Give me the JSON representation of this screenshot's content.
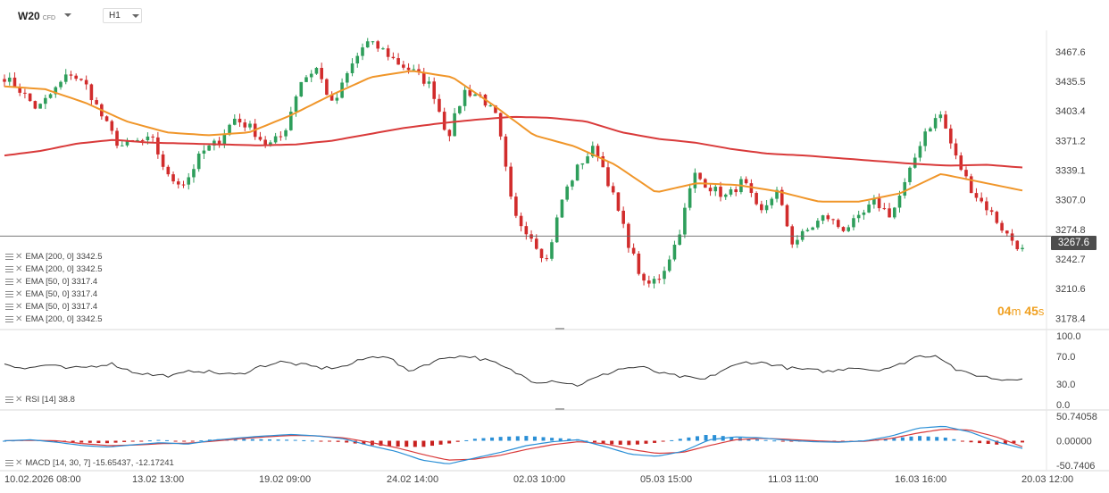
{
  "header": {
    "symbol": "W20",
    "symbol_type": "CFD",
    "timeframe": "H1"
  },
  "indicators_main": [
    {
      "label": "EMA",
      "params": "[200,  0]",
      "value": "3342.5",
      "color": "#d93a3a"
    },
    {
      "label": "EMA",
      "params": "[200,  0]",
      "value": "3342.5",
      "color": "#d93a3a"
    },
    {
      "label": "EMA",
      "params": "[50,  0]",
      "value": "3317.4",
      "color": "#f0962a"
    },
    {
      "label": "EMA",
      "params": "[50,  0]",
      "value": "3317.4",
      "color": "#f0962a"
    },
    {
      "label": "EMA",
      "params": "[50,  0]",
      "value": "3317.4",
      "color": "#f0962a"
    },
    {
      "label": "EMA",
      "params": "[200,  0]",
      "value": "3342.5",
      "color": "#d93a3a"
    }
  ],
  "rsi_legend": {
    "label": "RSI",
    "params": "[14]",
    "value": "38.8"
  },
  "macd_legend": {
    "label": "MACD",
    "params": "[14,  30,  7]",
    "value1": "-15.65437,",
    "value2": "-12.17241"
  },
  "timer": {
    "minutes": "04",
    "m": "m",
    "seconds": "45",
    "s": "s"
  },
  "current_price": "3267.6",
  "colors": {
    "up": "#2e9e5b",
    "down": "#d12c2c",
    "ema200": "#d93a3a",
    "ema50": "#f0962a",
    "rsi": "#333333",
    "macd_line": "#2a8fd6",
    "macd_signal": "#d93a3a",
    "hist_up": "#2a8fd6",
    "hist_down": "#c8201e"
  },
  "chart_data": [
    {
      "type": "candlestick",
      "ylim": [
        3170,
        3485
      ],
      "y_ticks": [
        "3467.6",
        "3435.5",
        "3403.4",
        "3371.2",
        "3339.1",
        "3307.0",
        "3274.8",
        "3242.7",
        "3210.6",
        "3178.4"
      ],
      "y_tick_values": [
        3467.6,
        3435.5,
        3403.4,
        3371.2,
        3339.1,
        3307.0,
        3274.8,
        3242.7,
        3210.6,
        3178.4
      ],
      "x_ticks": [
        "10.02.2026  08:00",
        "13.02  13:00",
        "19.02  09:00",
        "24.02  14:00",
        "02.03  10:00",
        "05.03  15:00",
        "11.03  11:00",
        "16.03  16:00",
        "20.03  12:00"
      ],
      "close_anchors": [
        3440,
        3425,
        3405,
        3425,
        3445,
        3430,
        3395,
        3365,
        3370,
        3372,
        3330,
        3325,
        3358,
        3370,
        3395,
        3385,
        3365,
        3378,
        3435,
        3450,
        3408,
        3448,
        3478,
        3470,
        3455,
        3445,
        3430,
        3375,
        3425,
        3420,
        3395,
        3290,
        3270,
        3240,
        3310,
        3345,
        3365,
        3315,
        3260,
        3212,
        3225,
        3265,
        3335,
        3320,
        3310,
        3328,
        3290,
        3318,
        3260,
        3275,
        3290,
        3275,
        3285,
        3305,
        3290,
        3330,
        3380,
        3400,
        3350,
        3315,
        3295,
        3270,
        3252
      ],
      "series": [
        {
          "name": "EMA [200, 0]",
          "anchors": [
            3355,
            3360,
            3368,
            3372,
            3369,
            3368,
            3367,
            3366,
            3367,
            3371,
            3378,
            3385,
            3390,
            3394,
            3397,
            3396,
            3392,
            3380,
            3373,
            3369,
            3362,
            3357,
            3355,
            3352,
            3349,
            3346,
            3344,
            3345,
            3342
          ]
        },
        {
          "name": "EMA [50, 0]",
          "anchors": [
            3430,
            3427,
            3412,
            3392,
            3380,
            3377,
            3380,
            3398,
            3420,
            3440,
            3447,
            3440,
            3410,
            3377,
            3365,
            3345,
            3315,
            3325,
            3323,
            3316,
            3305,
            3305,
            3314,
            3335,
            3326,
            3317
          ]
        }
      ]
    },
    {
      "type": "line",
      "name": "RSI [14]",
      "ylim": [
        0,
        100
      ],
      "y_ticks": [
        "100.0",
        "70.0",
        "30.0",
        "0.0"
      ],
      "y_tick_values": [
        100,
        70,
        30,
        0
      ],
      "anchors": [
        60,
        52,
        58,
        52,
        55,
        60,
        48,
        43,
        42,
        50,
        46,
        43,
        55,
        62,
        58,
        53,
        55,
        67,
        72,
        48,
        60,
        70,
        70,
        62,
        48,
        33,
        35,
        28,
        40,
        52,
        55,
        45,
        40,
        36,
        52,
        62,
        60,
        53,
        50,
        48,
        55,
        50,
        55,
        70,
        72,
        48,
        42,
        36,
        38.8
      ]
    },
    {
      "type": "bar_line",
      "name": "MACD [14, 30, 7]",
      "ylim": [
        -50.7406,
        50.74058
      ],
      "y_ticks": [
        "50.74058",
        "0.00000",
        "-50.7406"
      ],
      "y_tick_values": [
        50.74058,
        0,
        -50.7406
      ],
      "macd_anchors": [
        0,
        2,
        -3,
        -10,
        -13,
        -8,
        -4,
        -7,
        1,
        6,
        10,
        13,
        10,
        4,
        -10,
        -22,
        -40,
        -48,
        -36,
        -24,
        -10,
        -2,
        2,
        -12,
        -28,
        -32,
        -22,
        2,
        8,
        6,
        1,
        -2,
        -3,
        0,
        10,
        26,
        30,
        18,
        -2,
        -15.65437
      ],
      "signal_anchors": [
        0,
        1,
        0,
        -6,
        -10,
        -9,
        -6,
        -5,
        -1,
        4,
        8,
        11,
        10,
        6,
        -3,
        -14,
        -28,
        -40,
        -38,
        -30,
        -18,
        -8,
        -2,
        -6,
        -18,
        -26,
        -24,
        -10,
        2,
        5,
        3,
        0,
        -2,
        -1,
        5,
        16,
        24,
        22,
        8,
        -12.17241
      ],
      "histogram_anchors": [
        0,
        2,
        -1,
        -4,
        -5,
        -1,
        2,
        -2,
        3,
        4,
        3,
        2,
        0,
        -3,
        -9,
        -12,
        -13,
        -6,
        4,
        8,
        10,
        6,
        3,
        -7,
        -9,
        -4,
        5,
        13,
        7,
        2,
        -1,
        -2,
        -1,
        1,
        5,
        10,
        7,
        -3,
        -8,
        -3.5
      ]
    }
  ]
}
